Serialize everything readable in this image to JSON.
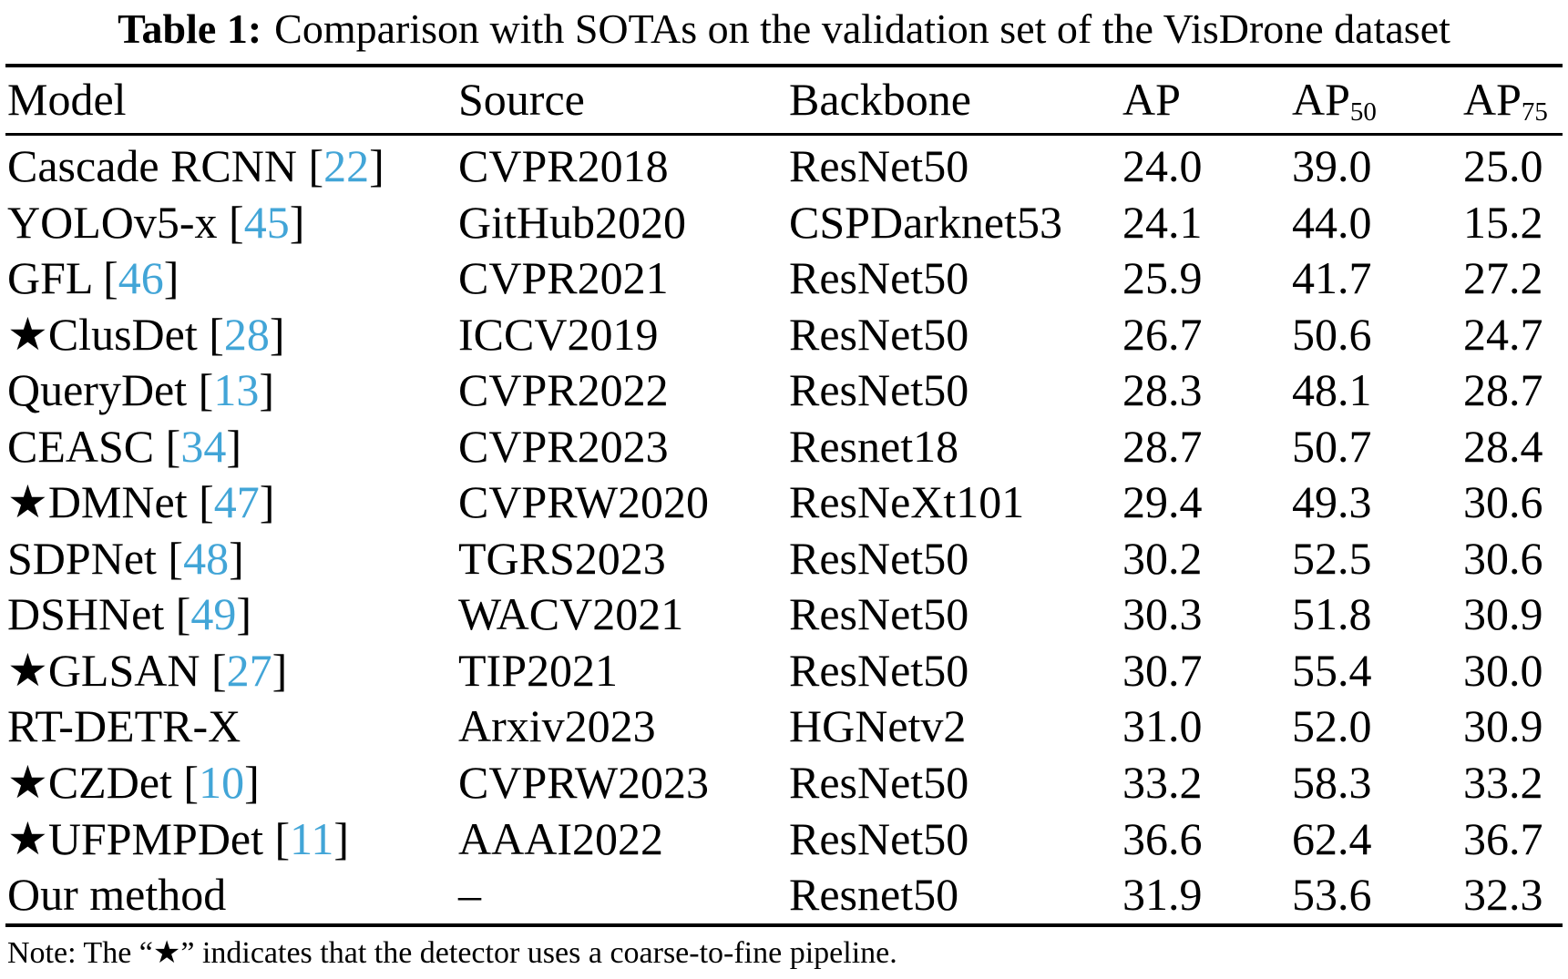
{
  "title": {
    "label": "Table 1:",
    "text": "Comparison with SOTAs on the validation set of the VisDrone dataset"
  },
  "table": {
    "header": {
      "model": "Model",
      "source": "Source",
      "backbone": "Backbone",
      "ap": "AP",
      "ap50_base": "AP",
      "ap50_sub": "50",
      "ap75_base": "AP",
      "ap75_sub": "75"
    },
    "rows": [
      {
        "star": false,
        "model": "Cascade RCNN",
        "cite": "22",
        "source": "CVPR2018",
        "backbone": "ResNet50",
        "ap": "24.0",
        "ap50": "39.0",
        "ap75": "25.0"
      },
      {
        "star": false,
        "model": "YOLOv5-x",
        "cite": "45",
        "source": "GitHub2020",
        "backbone": "CSPDarknet53",
        "ap": "24.1",
        "ap50": "44.0",
        "ap75": "15.2"
      },
      {
        "star": false,
        "model": "GFL",
        "cite": "46",
        "source": "CVPR2021",
        "backbone": "ResNet50",
        "ap": "25.9",
        "ap50": "41.7",
        "ap75": "27.2"
      },
      {
        "star": true,
        "model": "ClusDet",
        "cite": "28",
        "source": "ICCV2019",
        "backbone": "ResNet50",
        "ap": "26.7",
        "ap50": "50.6",
        "ap75": "24.7"
      },
      {
        "star": false,
        "model": "QueryDet",
        "cite": "13",
        "source": "CVPR2022",
        "backbone": "ResNet50",
        "ap": "28.3",
        "ap50": "48.1",
        "ap75": "28.7"
      },
      {
        "star": false,
        "model": "CEASC",
        "cite": "34",
        "source": "CVPR2023",
        "backbone": "Resnet18",
        "ap": "28.7",
        "ap50": "50.7",
        "ap75": "28.4"
      },
      {
        "star": true,
        "model": "DMNet",
        "cite": "47",
        "source": "CVPRW2020",
        "backbone": "ResNeXt101",
        "ap": "29.4",
        "ap50": "49.3",
        "ap75": "30.6"
      },
      {
        "star": false,
        "model": "SDPNet",
        "cite": "48",
        "source": "TGRS2023",
        "backbone": "ResNet50",
        "ap": "30.2",
        "ap50": "52.5",
        "ap75": "30.6"
      },
      {
        "star": false,
        "model": "DSHNet",
        "cite": "49",
        "source": "WACV2021",
        "backbone": "ResNet50",
        "ap": "30.3",
        "ap50": "51.8",
        "ap75": "30.9"
      },
      {
        "star": true,
        "model": "GLSAN",
        "cite": "27",
        "source": "TIP2021",
        "backbone": "ResNet50",
        "ap": "30.7",
        "ap50": "55.4",
        "ap75": "30.0"
      },
      {
        "star": false,
        "model": "RT-DETR-X",
        "cite": "",
        "source": "Arxiv2023",
        "backbone": "HGNetv2",
        "ap": "31.0",
        "ap50": "52.0",
        "ap75": "30.9"
      },
      {
        "star": true,
        "model": "CZDet",
        "cite": "10",
        "source": "CVPRW2023",
        "backbone": "ResNet50",
        "ap": "33.2",
        "ap50": "58.3",
        "ap75": "33.2"
      },
      {
        "star": true,
        "model": "UFPMPDet",
        "cite": "11",
        "source": "AAAI2022",
        "backbone": "ResNet50",
        "ap": "36.6",
        "ap50": "62.4",
        "ap75": "36.7"
      },
      {
        "star": false,
        "model": "Our method",
        "cite": "",
        "source": "–",
        "backbone": "Resnet50",
        "ap": "31.9",
        "ap50": "53.6",
        "ap75": "32.3"
      }
    ]
  },
  "note": "Note: The “★” indicates that the detector uses a coarse-to-fine pipeline.",
  "glyphs": {
    "star": "★"
  },
  "colors": {
    "background": "#FFFFFF",
    "text": "#000000",
    "rule": "#000000",
    "citation": "#42A5D7"
  }
}
